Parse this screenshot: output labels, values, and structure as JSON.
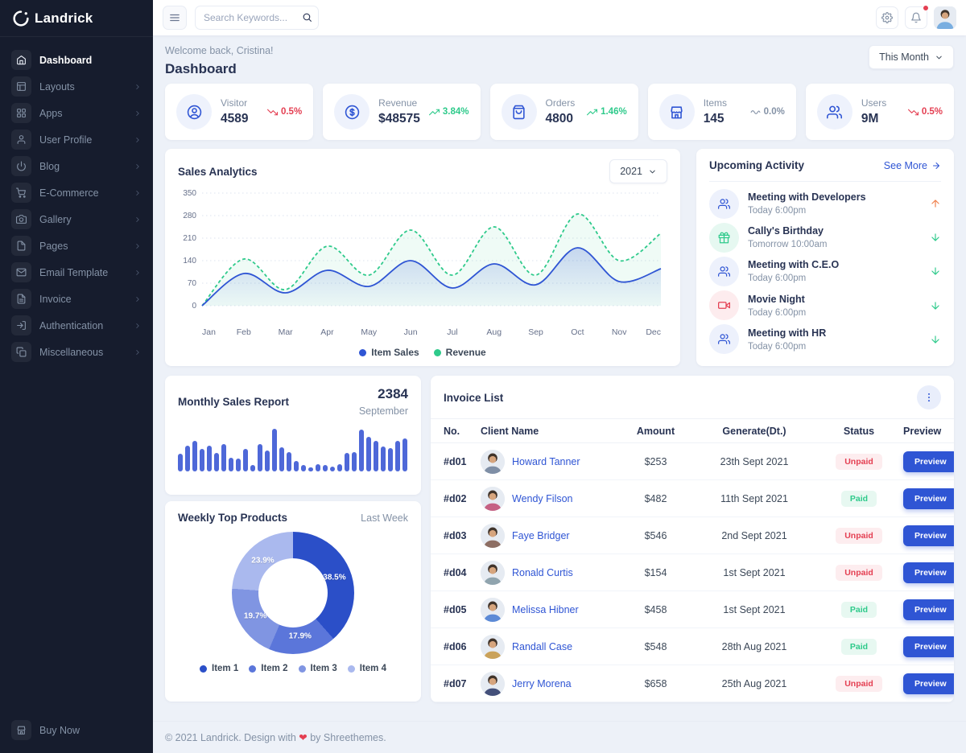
{
  "brand": {
    "name": "Landrick"
  },
  "colors": {
    "primary": "#2f55d4",
    "success": "#2eca8b",
    "danger": "#e43f52",
    "warning_arrow": "#f0804c",
    "muted": "#8492a6",
    "sidebar_bg": "#161c2d",
    "heading": "#283353"
  },
  "sidebar": {
    "items": [
      {
        "label": "Dashboard",
        "icon": "home",
        "active": true,
        "has_submenu": false
      },
      {
        "label": "Layouts",
        "icon": "layout",
        "active": false,
        "has_submenu": true
      },
      {
        "label": "Apps",
        "icon": "grid",
        "active": false,
        "has_submenu": true
      },
      {
        "label": "User Profile",
        "icon": "user",
        "active": false,
        "has_submenu": true
      },
      {
        "label": "Blog",
        "icon": "power",
        "active": false,
        "has_submenu": true
      },
      {
        "label": "E-Commerce",
        "icon": "cart",
        "active": false,
        "has_submenu": true
      },
      {
        "label": "Gallery",
        "icon": "camera",
        "active": false,
        "has_submenu": true
      },
      {
        "label": "Pages",
        "icon": "file",
        "active": false,
        "has_submenu": true
      },
      {
        "label": "Email Template",
        "icon": "mail",
        "active": false,
        "has_submenu": true
      },
      {
        "label": "Invoice",
        "icon": "file-text",
        "active": false,
        "has_submenu": true
      },
      {
        "label": "Authentication",
        "icon": "log-in",
        "active": false,
        "has_submenu": true
      },
      {
        "label": "Miscellaneous",
        "icon": "copy",
        "active": false,
        "has_submenu": true
      }
    ],
    "buy_now": "Buy Now"
  },
  "topbar": {
    "search_placeholder": "Search Keywords..."
  },
  "page": {
    "welcome": "Welcome back, Cristina!",
    "title": "Dashboard",
    "period_filter": "This Month"
  },
  "stats": [
    {
      "label": "Visitor",
      "value": "4589",
      "delta": "0.5%",
      "trend": "down",
      "icon": "user-circle"
    },
    {
      "label": "Revenue",
      "value": "$48575",
      "delta": "3.84%",
      "trend": "up",
      "icon": "dollar"
    },
    {
      "label": "Orders",
      "value": "4800",
      "delta": "1.46%",
      "trend": "up",
      "icon": "bag"
    },
    {
      "label": "Items",
      "value": "145",
      "delta": "0.0%",
      "trend": "flat",
      "icon": "store"
    },
    {
      "label": "Users",
      "value": "9M",
      "delta": "0.5%",
      "trend": "down",
      "icon": "users"
    }
  ],
  "chart_data": [
    {
      "id": "sales_analytics",
      "type": "line",
      "title": "Sales Analytics",
      "year_filter": "2021",
      "x": [
        "Jan",
        "Feb",
        "Mar",
        "Apr",
        "May",
        "Jun",
        "Jul",
        "Aug",
        "Sep",
        "Oct",
        "Nov",
        "Dec"
      ],
      "ylim": [
        0,
        350
      ],
      "yticks": [
        0,
        70,
        140,
        210,
        280,
        350
      ],
      "grid": true,
      "legend_position": "bottom",
      "series": [
        {
          "name": "Item Sales",
          "color": "#2f55d4",
          "style": "solid",
          "values": [
            0,
            100,
            40,
            110,
            60,
            140,
            55,
            130,
            65,
            180,
            75,
            115
          ]
        },
        {
          "name": "Revenue",
          "color": "#2eca8b",
          "style": "dashed",
          "values": [
            0,
            145,
            50,
            185,
            95,
            235,
            95,
            245,
            95,
            285,
            140,
            225
          ]
        }
      ]
    },
    {
      "id": "monthly_sales",
      "type": "bar",
      "title": "Monthly Sales Report",
      "highlight_value": "2384",
      "highlight_label": "September",
      "color": "#4e68d8",
      "values": [
        38,
        55,
        65,
        48,
        55,
        40,
        58,
        30,
        27,
        48,
        14,
        58,
        45,
        92,
        52,
        42,
        22,
        13,
        9,
        16,
        13,
        11,
        16,
        40,
        42,
        90,
        74,
        66,
        54,
        50,
        65,
        70
      ]
    },
    {
      "id": "weekly_top_products",
      "type": "pie",
      "title": "Weekly Top Products",
      "period": "Last Week",
      "labels": [
        "Item 1",
        "Item 2",
        "Item 3",
        "Item 4"
      ],
      "values": [
        38.5,
        17.9,
        19.7,
        23.9
      ],
      "colors": [
        "#2b4fc8",
        "#5b76da",
        "#8095e2",
        "#aab9ee"
      ],
      "start": "top",
      "direction": "clockwise",
      "donut": true
    }
  ],
  "activity": {
    "title": "Upcoming Activity",
    "see_more": "See More",
    "items": [
      {
        "title": "Meeting with Developers",
        "time": "Today 6:00pm",
        "icon": "users",
        "icon_color": "blue",
        "direction": "up"
      },
      {
        "title": "Cally's Birthday",
        "time": "Tomorrow 10:00am",
        "icon": "gift",
        "icon_color": "green",
        "direction": "down"
      },
      {
        "title": "Meeting with C.E.O",
        "time": "Today 6:00pm",
        "icon": "users",
        "icon_color": "blue",
        "direction": "down"
      },
      {
        "title": "Movie Night",
        "time": "Today 6:00pm",
        "icon": "video",
        "icon_color": "red",
        "direction": "down"
      },
      {
        "title": "Meeting with HR",
        "time": "Today 6:00pm",
        "icon": "users",
        "icon_color": "blue",
        "direction": "down"
      }
    ]
  },
  "invoice": {
    "title": "Invoice List",
    "columns": [
      "No.",
      "Client Name",
      "Amount",
      "Generate(Dt.)",
      "Status",
      "Preview"
    ],
    "preview_label": "Preview",
    "rows": [
      {
        "no": "#d01",
        "client": "Howard Tanner",
        "amount": "$253",
        "date": "23th Sept 2021",
        "status": "Unpaid"
      },
      {
        "no": "#d02",
        "client": "Wendy Filson",
        "amount": "$482",
        "date": "11th Sept 2021",
        "status": "Paid"
      },
      {
        "no": "#d03",
        "client": "Faye Bridger",
        "amount": "$546",
        "date": "2nd Sept 2021",
        "status": "Unpaid"
      },
      {
        "no": "#d04",
        "client": "Ronald Curtis",
        "amount": "$154",
        "date": "1st Sept 2021",
        "status": "Unpaid"
      },
      {
        "no": "#d05",
        "client": "Melissa Hibner",
        "amount": "$458",
        "date": "1st Sept 2021",
        "status": "Paid"
      },
      {
        "no": "#d06",
        "client": "Randall Case",
        "amount": "$548",
        "date": "28th Aug 2021",
        "status": "Paid"
      },
      {
        "no": "#d07",
        "client": "Jerry Morena",
        "amount": "$658",
        "date": "25th Aug 2021",
        "status": "Unpaid"
      }
    ]
  },
  "footer": {
    "prefix": "© 2021 Landrick. Design with",
    "heart": "❤",
    "suffix": "by Shreethemes."
  }
}
